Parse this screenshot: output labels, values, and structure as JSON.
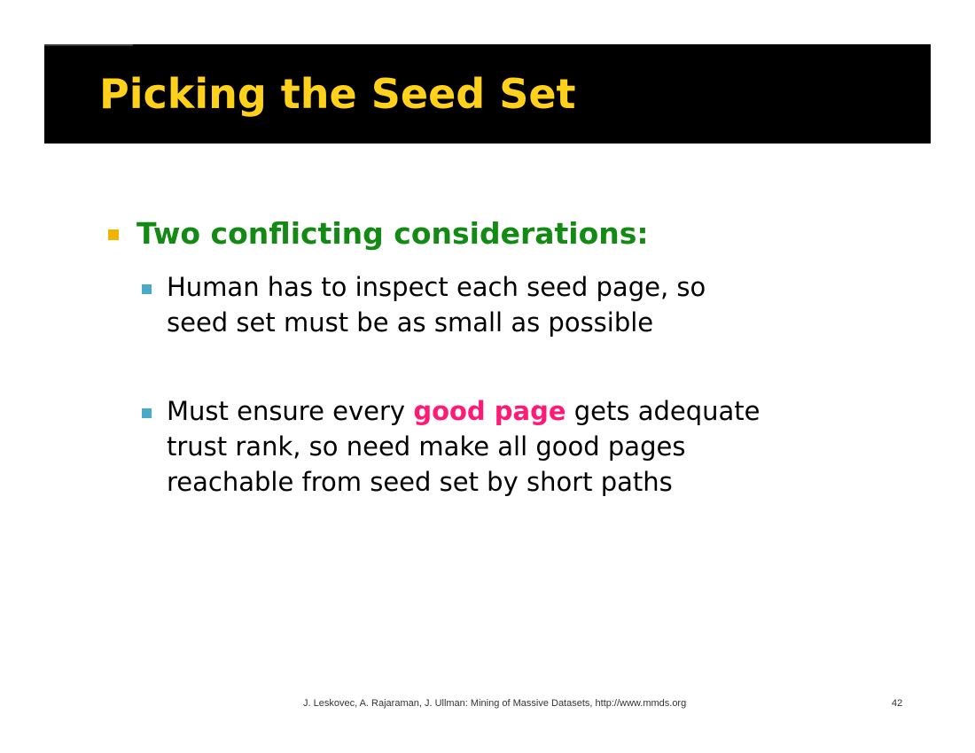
{
  "slide": {
    "title": "Picking the Seed Set",
    "bullets": [
      {
        "text": "Two conflicting considerations:",
        "sub_bullets": [
          {
            "lines": [
              "Human has to inspect each seed page, so",
              "seed set must be as small as possible"
            ]
          },
          {
            "line1_before": "Must ensure every ",
            "line1_highlight": "good page",
            "line1_after": " gets adequate",
            "lines_rest": [
              "trust rank, so need make all good pages",
              "reachable from seed set by short paths"
            ]
          }
        ]
      }
    ]
  },
  "footer": {
    "citation": "J. Leskovec, A. Rajaraman, J. Ullman: Mining of Massive Datasets, http://www.mmds.org",
    "page_number": "42"
  },
  "colors": {
    "title": "#ffd11a",
    "bullet_l1_text": "#138a13",
    "bullet_l1_square": "#f0b400",
    "bullet_l2_square": "#4aa8c8",
    "highlight": "#ff1a75",
    "title_bar": "#000000"
  }
}
